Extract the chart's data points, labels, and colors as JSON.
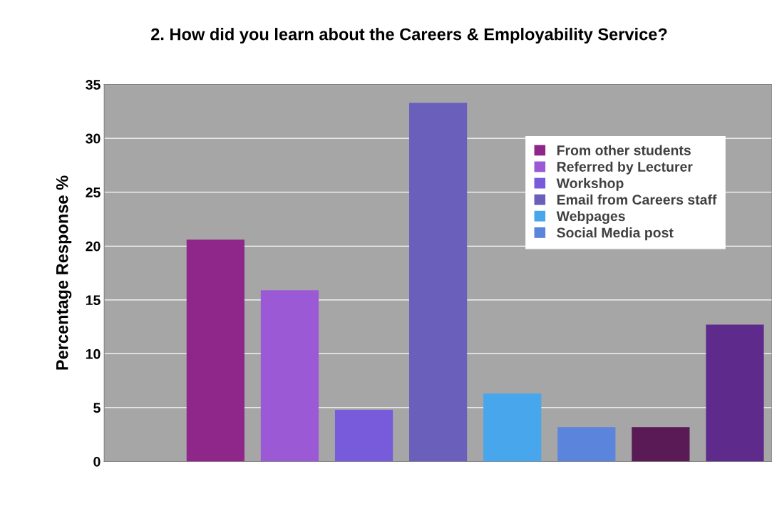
{
  "chart_data": {
    "type": "bar",
    "title": "2. How did you learn about the Careers & Employability Service?",
    "ylabel": "Percentage Response %",
    "categories": [
      null,
      null,
      null,
      null,
      null,
      null,
      null,
      null,
      null
    ],
    "series": [
      {
        "name": "From other students",
        "color": "#8e2789",
        "values": [
          null,
          20.6,
          null,
          null,
          null,
          null,
          null,
          null,
          null
        ]
      },
      {
        "name": "Referred by Lecturer",
        "color": "#9b59d6",
        "values": [
          null,
          null,
          15.9,
          null,
          null,
          null,
          null,
          null,
          null
        ]
      },
      {
        "name": "Workshop",
        "color": "#775bdb",
        "values": [
          null,
          null,
          null,
          4.8,
          null,
          null,
          null,
          null,
          null
        ]
      },
      {
        "name": "Email from Careers staff",
        "color": "#6a60bb",
        "values": [
          null,
          null,
          null,
          null,
          33.3,
          null,
          null,
          null,
          null
        ]
      },
      {
        "name": "Webpages",
        "color": "#47a6ec",
        "values": [
          null,
          null,
          null,
          null,
          null,
          6.3,
          null,
          null,
          null
        ]
      },
      {
        "name": "Social Media post",
        "color": "#5b84dc",
        "values": [
          null,
          null,
          null,
          null,
          null,
          null,
          3.2,
          null,
          null
        ]
      },
      {
        "color": "#5a1a55",
        "values": [
          null,
          null,
          null,
          null,
          null,
          null,
          null,
          3.2,
          null
        ]
      },
      {
        "color": "#5e2a8b",
        "values": [
          null,
          null,
          null,
          null,
          null,
          null,
          null,
          null,
          12.7
        ]
      }
    ],
    "ylim": [
      0,
      35
    ],
    "yticks": [
      0,
      5,
      10,
      15,
      20,
      25,
      30,
      35
    ],
    "grid": "y",
    "legend": "top right"
  }
}
